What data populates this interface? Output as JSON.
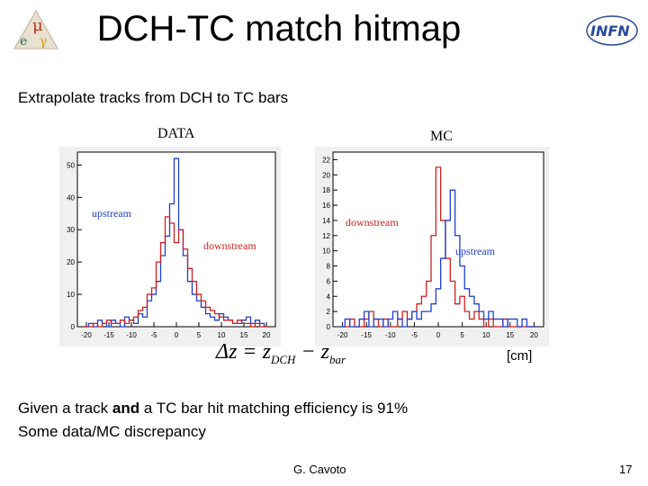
{
  "slide": {
    "title": "DCH-TC match hitmap",
    "subtitle": "Extrapolate tracks from DCH to TC bars",
    "bullet1_pre": "Given a track ",
    "bullet1_bold": "and",
    "bullet1_post": " a TC bar hit matching efficiency is 91%",
    "bullet2": "Some data/MC discrepancy",
    "author": "G. Cavoto",
    "page": "17",
    "unit": "[cm]",
    "formula": {
      "lhs": "Δz = z",
      "sub1": "DCH",
      "mid": " − z",
      "sub2": "bar"
    },
    "logo_right_text": "INFN"
  },
  "chart_data": [
    {
      "type": "histogram",
      "title": "DATA",
      "x_ticks": [
        -20,
        -15,
        -10,
        -5,
        0,
        5,
        10,
        15,
        20
      ],
      "y_ticks": [
        0,
        10,
        20,
        30,
        40,
        50
      ],
      "xlim": [
        -22,
        22
      ],
      "ylim": [
        0,
        54
      ],
      "colors": {
        "upstream": "#1f3fd0",
        "downstream": "#d01f1f"
      },
      "bin_centers": [
        -20,
        -19,
        -18,
        -17,
        -16,
        -15,
        -14,
        -13,
        -12,
        -11,
        -10,
        -9,
        -8,
        -7,
        -6,
        -5,
        -4,
        -3,
        -2,
        -1,
        0,
        1,
        2,
        3,
        4,
        5,
        6,
        7,
        8,
        9,
        10,
        11,
        12,
        13,
        14,
        15,
        16,
        17,
        18,
        19,
        20
      ],
      "series": [
        {
          "name": "upstream",
          "values": [
            0,
            1,
            0,
            2,
            1,
            0,
            2,
            1,
            0,
            3,
            2,
            1,
            4,
            3,
            8,
            10,
            14,
            22,
            28,
            38,
            52,
            30,
            22,
            14,
            10,
            8,
            6,
            4,
            3,
            2,
            4,
            3,
            2,
            1,
            1,
            2,
            3,
            1,
            2,
            1,
            0
          ]
        },
        {
          "name": "downstream",
          "values": [
            0,
            0,
            1,
            0,
            1,
            2,
            1,
            1,
            2,
            1,
            2,
            3,
            5,
            6,
            10,
            12,
            20,
            26,
            34,
            32,
            26,
            30,
            24,
            18,
            14,
            10,
            8,
            6,
            5,
            4,
            3,
            2,
            2,
            1,
            2,
            1,
            1,
            0,
            1,
            0,
            0
          ]
        }
      ],
      "legend_labels": [
        "upstream",
        "downstream"
      ]
    },
    {
      "type": "histogram",
      "title": "MC",
      "x_ticks": [
        -20,
        -15,
        -10,
        -5,
        0,
        5,
        10,
        15,
        20
      ],
      "y_ticks": [
        0,
        2,
        4,
        6,
        8,
        10,
        12,
        14,
        16,
        18,
        20,
        22
      ],
      "xlim": [
        -22,
        22
      ],
      "ylim": [
        0,
        23
      ],
      "colors": {
        "upstream": "#1f3fd0",
        "downstream": "#d01f1f"
      },
      "bin_centers": [
        -20,
        -19,
        -18,
        -17,
        -16,
        -15,
        -14,
        -13,
        -12,
        -11,
        -10,
        -9,
        -8,
        -7,
        -6,
        -5,
        -4,
        -3,
        -2,
        -1,
        0,
        1,
        2,
        3,
        4,
        5,
        6,
        7,
        8,
        9,
        10,
        11,
        12,
        13,
        14,
        15,
        16,
        17,
        18,
        19,
        20
      ],
      "series": [
        {
          "name": "downstream",
          "values": [
            0,
            0,
            1,
            0,
            0,
            1,
            2,
            1,
            0,
            1,
            0,
            0,
            1,
            2,
            1,
            2,
            3,
            4,
            6,
            12,
            21,
            14,
            9,
            6,
            3,
            4,
            2,
            1,
            2,
            1,
            0,
            1,
            0,
            0,
            1,
            0,
            0,
            0,
            0,
            0,
            0
          ]
        },
        {
          "name": "upstream",
          "values": [
            0,
            1,
            0,
            0,
            1,
            2,
            0,
            1,
            1,
            0,
            1,
            2,
            1,
            0,
            1,
            2,
            1,
            2,
            2,
            3,
            5,
            9,
            14,
            18,
            12,
            8,
            5,
            4,
            3,
            2,
            1,
            2,
            1,
            1,
            0,
            1,
            1,
            0,
            1,
            0,
            0
          ]
        }
      ],
      "legend_labels": [
        "downstream",
        "upstream"
      ]
    }
  ]
}
